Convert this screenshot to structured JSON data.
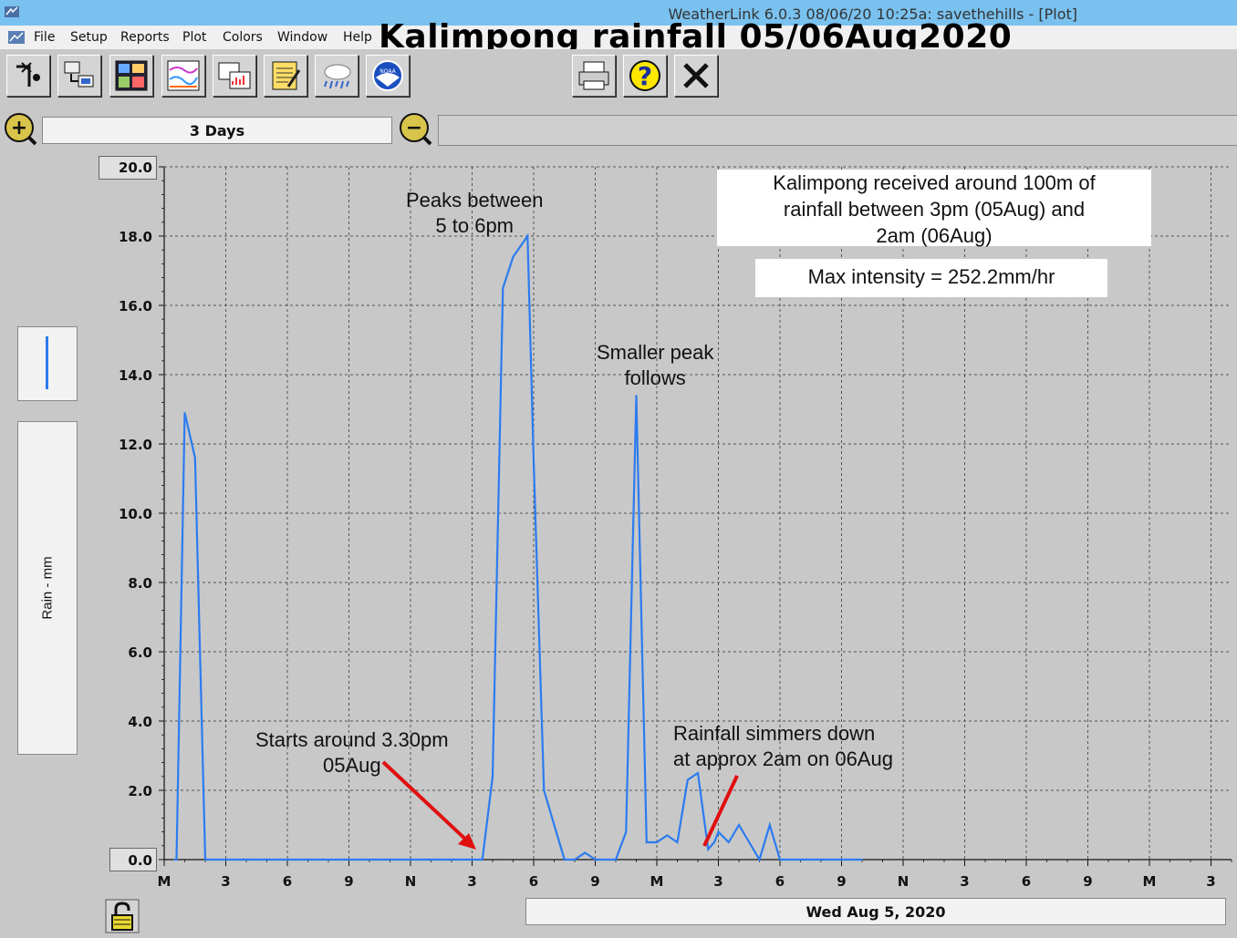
{
  "window": {
    "title": "WeatherLink 6.0.3  08/06/20  10:25a: savethehills - [Plot]"
  },
  "menu": {
    "items": [
      "File",
      "Setup",
      "Reports",
      "Plot",
      "Colors",
      "Window",
      "Help"
    ]
  },
  "overlay_title": "Kalimpong rainfall 05/06Aug2020",
  "toolbar": {
    "buttons": [
      {
        "name": "station-icon"
      },
      {
        "name": "download-icon"
      },
      {
        "name": "bulletin-icon"
      },
      {
        "name": "plot-icon"
      },
      {
        "name": "browse-icon"
      },
      {
        "name": "notepad-icon"
      },
      {
        "name": "weather-cloud-icon"
      },
      {
        "name": "noaa-icon",
        "label": "NOAA"
      },
      {
        "name": "print-icon"
      },
      {
        "name": "help-icon",
        "label": "?"
      },
      {
        "name": "close-icon"
      }
    ]
  },
  "zoom": {
    "span_label": "3 Days",
    "zoom_in": "+",
    "zoom_out": "−"
  },
  "legend": {
    "series_color": "#2b7bf0",
    "ylabel": "Rain - mm"
  },
  "date_label": "Wed Aug 5, 2020",
  "chart_data": {
    "type": "line",
    "title": "Kalimpong rainfall 05/06Aug2020",
    "ylabel": "Rain - mm",
    "xlabel": "Wed Aug 5, 2020",
    "ylim": [
      0,
      20
    ],
    "xlim_hours": [
      0,
      72
    ],
    "grid": true,
    "y_ticks": [
      "20.0",
      "18.0",
      "16.0",
      "14.0",
      "12.0",
      "10.0",
      "8.0",
      "6.0",
      "4.0",
      "2.0",
      "0.0"
    ],
    "y_tick_values": [
      20,
      18,
      16,
      14,
      12,
      10,
      8,
      6,
      4,
      2,
      0
    ],
    "x_ticks": [
      "M",
      "3",
      "6",
      "9",
      "N",
      "3",
      "6",
      "9",
      "M",
      "3",
      "6",
      "9",
      "N",
      "3",
      "6",
      "9",
      "M",
      "3"
    ],
    "x_tick_hours": [
      0,
      3,
      6,
      9,
      12,
      15,
      18,
      21,
      24,
      27,
      30,
      33,
      36,
      39,
      42,
      45,
      48,
      51
    ],
    "series": [
      {
        "color": "#2b7bf0",
        "x_hours": [
          0.5,
          0.6,
          1.0,
          1.5,
          2.0,
          15.5,
          16.0,
          16.5,
          17.0,
          17.7,
          18.0,
          18.5,
          19.0,
          19.5,
          20.0,
          20.5,
          21.0,
          22.0,
          22.5,
          23.0,
          23.5,
          24.0,
          24.5,
          25.0,
          25.5,
          26.0,
          26.5,
          26.8,
          27.0,
          27.5,
          28.0,
          28.5,
          29.0,
          29.5,
          30.0,
          30.5,
          31.0,
          31.5,
          32.0,
          33.0,
          34.0
        ],
        "values": [
          0.0,
          0.0,
          12.9,
          11.6,
          0.0,
          0.0,
          2.4,
          16.5,
          17.4,
          18.0,
          11.5,
          2.0,
          1.0,
          0.0,
          0.0,
          0.2,
          0.0,
          0.0,
          0.8,
          13.4,
          0.5,
          0.5,
          0.7,
          0.5,
          2.3,
          2.5,
          0.3,
          0.5,
          0.8,
          0.5,
          1.0,
          0.5,
          0.0,
          1.0,
          0.0,
          0.0,
          0.0,
          0.0,
          0.0,
          0.0,
          0.0
        ]
      }
    ],
    "annotations": [
      {
        "text": [
          "Peaks between",
          "5 to 6pm"
        ]
      },
      {
        "text": [
          "Smaller peak",
          "follows"
        ]
      },
      {
        "text": [
          "Starts around 3.30pm",
          "05Aug"
        ]
      },
      {
        "text": [
          "Rainfall simmers down",
          "at approx 2am on 06Aug"
        ]
      }
    ],
    "notes": [
      {
        "text": [
          "Kalimpong received around 100m of",
          "rainfall between 3pm (05Aug) and",
          "2am (06Aug)"
        ]
      },
      {
        "text": [
          "Max intensity = 252.2mm/hr"
        ]
      }
    ]
  }
}
